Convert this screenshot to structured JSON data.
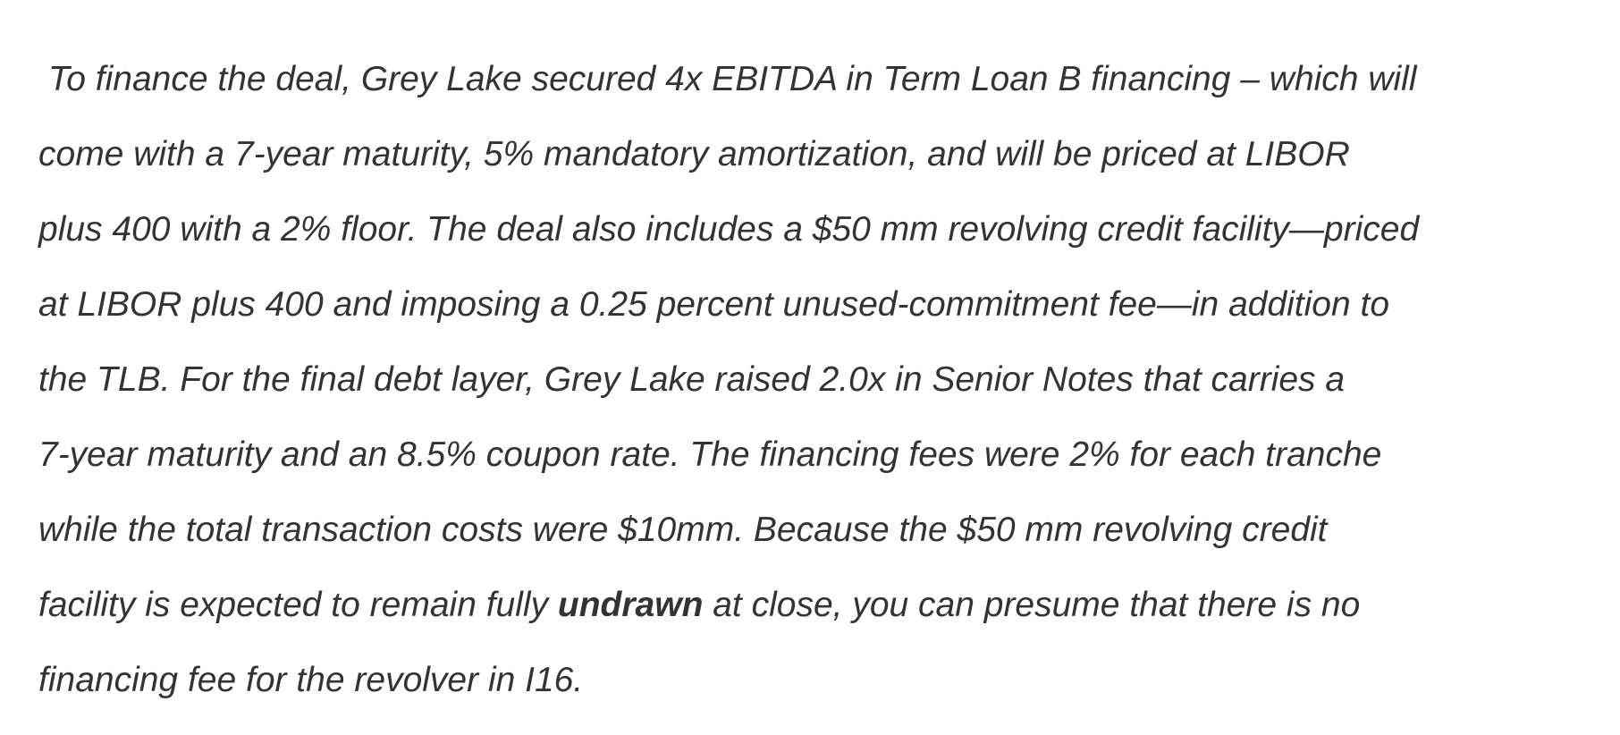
{
  "paragraph": {
    "line1": "To finance the deal, Grey Lake secured 4x EBITDA in Term Loan B financing – which will",
    "line2": "come with a 7-year maturity, 5% mandatory amortization, and will be priced at LIBOR",
    "line3": "plus 400 with a 2% floor. The deal also includes a $50 mm revolving credit facility—priced",
    "line4": "at LIBOR plus 400 and imposing a 0.25 percent unused-commitment fee—in addition to",
    "line5": "the TLB. For the final debt layer, Grey Lake raised 2.0x in Senior Notes that carries a",
    "line6": "7-year maturity and an 8.5% coupon rate. The financing fees were 2% for each tranche",
    "line7": "while the total transaction costs were $10mm. Because the $50 mm revolving credit",
    "line8_before": "facility is expected to remain fully ",
    "line8_bold": "undrawn",
    "line8_after": " at close, you can presume that there is no",
    "line9": "financing fee for the revolver in I16."
  }
}
